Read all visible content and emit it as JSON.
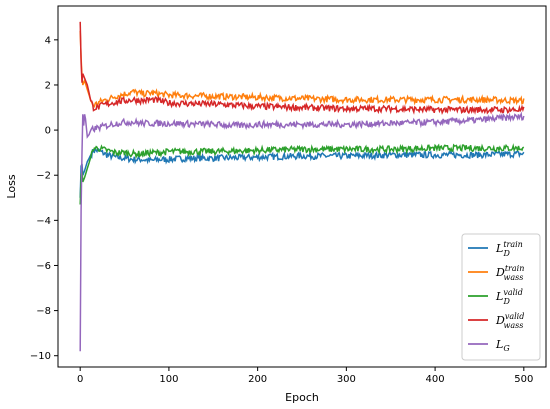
{
  "chart_data": {
    "type": "line",
    "title": "",
    "xlabel": "Epoch",
    "ylabel": "Loss",
    "xlim": [
      -25,
      525
    ],
    "ylim": [
      -10.5,
      5.5
    ],
    "xticks": [
      0,
      100,
      200,
      300,
      400,
      500
    ],
    "yticks": [
      -10,
      -8,
      -6,
      -4,
      -2,
      0,
      2,
      4
    ],
    "grid": false,
    "legend_position": "lower-right",
    "series": [
      {
        "name": "L_D^train",
        "color": "#1f77b4",
        "points": [
          [
            0,
            -3.0
          ],
          [
            1,
            -1.6
          ],
          [
            2,
            -1.5
          ],
          [
            3,
            -2.0
          ],
          [
            5,
            -1.8
          ],
          [
            8,
            -1.4
          ],
          [
            12,
            -1.1
          ],
          [
            15,
            -0.9
          ],
          [
            20,
            -0.9
          ],
          [
            25,
            -1.0
          ],
          [
            30,
            -1.1
          ],
          [
            40,
            -1.2
          ],
          [
            50,
            -1.25
          ],
          [
            60,
            -1.3
          ],
          [
            70,
            -1.3
          ],
          [
            80,
            -1.35
          ],
          [
            90,
            -1.3
          ],
          [
            100,
            -1.3
          ],
          [
            120,
            -1.25
          ],
          [
            150,
            -1.25
          ],
          [
            200,
            -1.2
          ],
          [
            250,
            -1.15
          ],
          [
            300,
            -1.15
          ],
          [
            350,
            -1.1
          ],
          [
            400,
            -1.1
          ],
          [
            450,
            -1.1
          ],
          [
            500,
            -1.05
          ]
        ]
      },
      {
        "name": "D_wass^train",
        "color": "#ff7f0e",
        "points": [
          [
            0,
            4.4
          ],
          [
            1,
            3.2
          ],
          [
            2,
            2.4
          ],
          [
            3,
            2.0
          ],
          [
            5,
            2.2
          ],
          [
            8,
            1.8
          ],
          [
            12,
            1.3
          ],
          [
            15,
            1.1
          ],
          [
            20,
            1.2
          ],
          [
            25,
            1.3
          ],
          [
            30,
            1.35
          ],
          [
            40,
            1.5
          ],
          [
            50,
            1.6
          ],
          [
            60,
            1.7
          ],
          [
            70,
            1.6
          ],
          [
            80,
            1.65
          ],
          [
            90,
            1.6
          ],
          [
            100,
            1.55
          ],
          [
            150,
            1.5
          ],
          [
            200,
            1.45
          ],
          [
            250,
            1.4
          ],
          [
            300,
            1.35
          ],
          [
            350,
            1.35
          ],
          [
            400,
            1.35
          ],
          [
            450,
            1.35
          ],
          [
            500,
            1.3
          ]
        ]
      },
      {
        "name": "L_D^valid",
        "color": "#2ca02c",
        "points": [
          [
            0,
            -3.3
          ],
          [
            1,
            -2.0
          ],
          [
            2,
            -1.8
          ],
          [
            3,
            -2.3
          ],
          [
            5,
            -2.1
          ],
          [
            8,
            -1.7
          ],
          [
            12,
            -1.2
          ],
          [
            15,
            -0.8
          ],
          [
            20,
            -0.8
          ],
          [
            25,
            -0.85
          ],
          [
            30,
            -0.9
          ],
          [
            40,
            -1.0
          ],
          [
            50,
            -1.0
          ],
          [
            60,
            -1.05
          ],
          [
            70,
            -1.05
          ],
          [
            80,
            -1.0
          ],
          [
            90,
            -1.0
          ],
          [
            100,
            -0.95
          ],
          [
            150,
            -0.95
          ],
          [
            200,
            -0.9
          ],
          [
            250,
            -0.85
          ],
          [
            300,
            -0.85
          ],
          [
            350,
            -0.85
          ],
          [
            400,
            -0.8
          ],
          [
            450,
            -0.8
          ],
          [
            500,
            -0.8
          ]
        ]
      },
      {
        "name": "D_wass^valid",
        "color": "#d62728",
        "points": [
          [
            0,
            4.8
          ],
          [
            1,
            3.0
          ],
          [
            2,
            2.1
          ],
          [
            3,
            2.5
          ],
          [
            5,
            2.3
          ],
          [
            8,
            2.0
          ],
          [
            12,
            1.3
          ],
          [
            15,
            1.0
          ],
          [
            20,
            1.0
          ],
          [
            25,
            1.1
          ],
          [
            30,
            1.15
          ],
          [
            40,
            1.25
          ],
          [
            50,
            1.3
          ],
          [
            60,
            1.35
          ],
          [
            70,
            1.3
          ],
          [
            80,
            1.35
          ],
          [
            90,
            1.3
          ],
          [
            100,
            1.2
          ],
          [
            150,
            1.15
          ],
          [
            200,
            1.05
          ],
          [
            250,
            1.0
          ],
          [
            300,
            0.95
          ],
          [
            350,
            0.95
          ],
          [
            400,
            0.9
          ],
          [
            450,
            0.9
          ],
          [
            500,
            0.9
          ]
        ]
      },
      {
        "name": "L_G",
        "color": "#9467bd",
        "points": [
          [
            0,
            -9.8
          ],
          [
            1,
            -3.5
          ],
          [
            2,
            -1.0
          ],
          [
            3,
            0.7
          ],
          [
            4,
            0.2
          ],
          [
            5,
            0.7
          ],
          [
            6,
            0.5
          ],
          [
            8,
            -0.3
          ],
          [
            10,
            -0.2
          ],
          [
            12,
            0.0
          ],
          [
            15,
            0.05
          ],
          [
            20,
            0.1
          ],
          [
            30,
            0.2
          ],
          [
            40,
            0.3
          ],
          [
            50,
            0.35
          ],
          [
            60,
            0.35
          ],
          [
            70,
            0.3
          ],
          [
            80,
            0.3
          ],
          [
            100,
            0.3
          ],
          [
            150,
            0.25
          ],
          [
            180,
            0.2
          ],
          [
            200,
            0.25
          ],
          [
            250,
            0.25
          ],
          [
            300,
            0.25
          ],
          [
            350,
            0.3
          ],
          [
            400,
            0.35
          ],
          [
            450,
            0.45
          ],
          [
            480,
            0.55
          ],
          [
            500,
            0.6
          ]
        ]
      }
    ]
  }
}
